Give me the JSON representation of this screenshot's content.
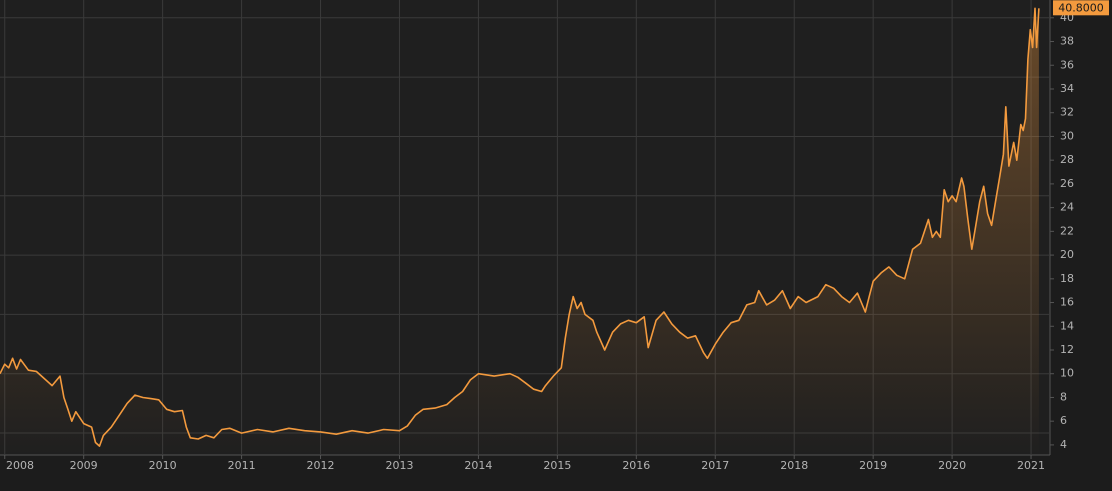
{
  "chart_data": {
    "type": "line",
    "x": [
      2007.94,
      2008.0,
      2008.05,
      2008.1,
      2008.15,
      2008.2,
      2008.3,
      2008.4,
      2008.5,
      2008.6,
      2008.7,
      2008.75,
      2008.8,
      2008.85,
      2008.9,
      2009.0,
      2009.1,
      2009.15,
      2009.2,
      2009.25,
      2009.35,
      2009.45,
      2009.55,
      2009.65,
      2009.75,
      2009.85,
      2009.95,
      2010.05,
      2010.15,
      2010.25,
      2010.3,
      2010.35,
      2010.45,
      2010.55,
      2010.65,
      2010.75,
      2010.85,
      2011.0,
      2011.2,
      2011.4,
      2011.6,
      2011.8,
      2012.0,
      2012.2,
      2012.4,
      2012.6,
      2012.8,
      2013.0,
      2013.1,
      2013.2,
      2013.3,
      2013.45,
      2013.6,
      2013.7,
      2013.8,
      2013.9,
      2014.0,
      2014.2,
      2014.4,
      2014.5,
      2014.6,
      2014.7,
      2014.8,
      2014.85,
      2014.95,
      2015.05,
      2015.1,
      2015.15,
      2015.2,
      2015.25,
      2015.3,
      2015.35,
      2015.45,
      2015.5,
      2015.6,
      2015.7,
      2015.8,
      2015.9,
      2016.0,
      2016.1,
      2016.15,
      2016.25,
      2016.35,
      2016.45,
      2016.55,
      2016.65,
      2016.75,
      2016.85,
      2016.9,
      2017.0,
      2017.1,
      2017.2,
      2017.3,
      2017.4,
      2017.5,
      2017.55,
      2017.65,
      2017.75,
      2017.85,
      2017.95,
      2018.05,
      2018.15,
      2018.3,
      2018.4,
      2018.5,
      2018.6,
      2018.7,
      2018.8,
      2018.9,
      2018.95,
      2019.0,
      2019.1,
      2019.2,
      2019.3,
      2019.4,
      2019.5,
      2019.6,
      2019.7,
      2019.75,
      2019.8,
      2019.85,
      2019.9,
      2019.95,
      2020.0,
      2020.05,
      2020.12,
      2020.15,
      2020.2,
      2020.25,
      2020.3,
      2020.35,
      2020.4,
      2020.45,
      2020.5,
      2020.55,
      2020.6,
      2020.65,
      2020.68,
      2020.72,
      2020.78,
      2020.82,
      2020.87,
      2020.9,
      2020.93,
      2020.96,
      2020.99,
      2021.02,
      2021.05,
      2021.07,
      2021.1
    ],
    "series": [
      {
        "color": "#f39a3e",
        "values": [
          10.0,
          10.8,
          10.5,
          11.3,
          10.4,
          11.2,
          10.3,
          10.2,
          9.6,
          9.0,
          9.8,
          8.0,
          7.0,
          6.0,
          6.8,
          5.8,
          5.5,
          4.2,
          3.9,
          4.8,
          5.5,
          6.5,
          7.5,
          8.2,
          8.0,
          7.9,
          7.8,
          7.0,
          6.8,
          6.9,
          5.5,
          4.6,
          4.5,
          4.8,
          4.6,
          5.3,
          5.4,
          5.0,
          5.3,
          5.1,
          5.4,
          5.2,
          5.1,
          4.9,
          5.2,
          5.0,
          5.3,
          5.2,
          5.6,
          6.5,
          7.0,
          7.1,
          7.4,
          8.0,
          8.5,
          9.5,
          10.0,
          9.8,
          10.0,
          9.7,
          9.2,
          8.7,
          8.5,
          9.0,
          9.8,
          10.5,
          13.0,
          15.0,
          16.5,
          15.5,
          16.0,
          15.0,
          14.5,
          13.5,
          12.0,
          13.5,
          14.2,
          14.5,
          14.3,
          14.8,
          12.2,
          14.5,
          15.2,
          14.2,
          13.5,
          13.0,
          13.2,
          11.8,
          11.3,
          12.5,
          13.5,
          14.3,
          14.5,
          15.8,
          16.0,
          17.0,
          15.8,
          16.2,
          17.0,
          15.5,
          16.5,
          16.0,
          16.5,
          17.5,
          17.2,
          16.5,
          16.0,
          16.8,
          15.2,
          16.5,
          17.8,
          18.5,
          19.0,
          18.3,
          18.0,
          20.5,
          21.0,
          23.0,
          21.5,
          22.0,
          21.5,
          25.5,
          24.5,
          25.0,
          24.5,
          26.5,
          25.8,
          23.0,
          20.5,
          22.5,
          24.5,
          25.8,
          23.5,
          22.5,
          24.5,
          26.5,
          28.5,
          32.5,
          27.5,
          29.5,
          28.0,
          31.0,
          30.5,
          31.5,
          36.5,
          39.0,
          37.5,
          40.8,
          37.5,
          40.8
        ]
      }
    ],
    "last_value_label": "40.8000",
    "xlim": [
      2007.94,
      2021.24
    ],
    "xticks": [
      2008,
      2009,
      2010,
      2011,
      2012,
      2013,
      2014,
      2015,
      2016,
      2017,
      2018,
      2019,
      2020,
      2021
    ],
    "ylim": [
      3.15,
      41.5
    ],
    "yticks": [
      4,
      6,
      8,
      10,
      12,
      14,
      16,
      18,
      20,
      22,
      24,
      26,
      28,
      30,
      32,
      34,
      36,
      38,
      40
    ],
    "ygridlines": [
      5,
      10,
      15,
      20,
      25,
      30,
      35,
      40
    ],
    "grid": true
  }
}
